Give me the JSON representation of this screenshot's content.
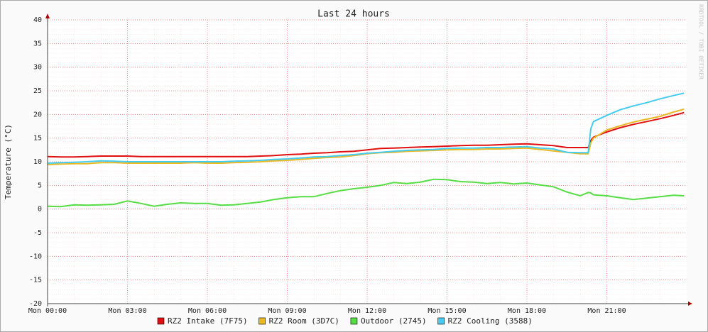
{
  "chart_data": {
    "type": "line",
    "title": "Last 24 hours",
    "y_label": "Temperature (°C)",
    "watermark": "RRDTOOL / TOBI OETIKER",
    "x": [
      0,
      0.5,
      1,
      1.5,
      2,
      2.5,
      3,
      3.5,
      4,
      4.5,
      5,
      5.5,
      6,
      6.5,
      7,
      7.5,
      8,
      8.5,
      9,
      9.5,
      10,
      10.5,
      11,
      11.5,
      12,
      12.5,
      13,
      13.5,
      14,
      14.5,
      15,
      15.5,
      16,
      16.5,
      17,
      17.5,
      18,
      18.5,
      19,
      19.5,
      20,
      20.3,
      20.4,
      20.5,
      21,
      21.5,
      22,
      22.5,
      23,
      23.5,
      23.9
    ],
    "xlim": [
      0,
      24
    ],
    "xticks": [
      {
        "value": 0,
        "label": "Mon 00:00"
      },
      {
        "value": 3,
        "label": "Mon 03:00"
      },
      {
        "value": 6,
        "label": "Mon 06:00"
      },
      {
        "value": 9,
        "label": "Mon 09:00"
      },
      {
        "value": 12,
        "label": "Mon 12:00"
      },
      {
        "value": 15,
        "label": "Mon 15:00"
      },
      {
        "value": 18,
        "label": "Mon 18:00"
      },
      {
        "value": 21,
        "label": "Mon 21:00"
      }
    ],
    "ylim": [
      -20,
      40
    ],
    "yticks": [
      -20,
      -15,
      -10,
      -5,
      0,
      5,
      10,
      15,
      20,
      25,
      30,
      35,
      40
    ],
    "grid": true,
    "series": [
      {
        "name": "RZ2 Intake (7F75)",
        "color": "#e01010",
        "values": [
          11.1,
          11,
          11,
          11.1,
          11.2,
          11.2,
          11.2,
          11.1,
          11.1,
          11.1,
          11.1,
          11.1,
          11.1,
          11.1,
          11.1,
          11.1,
          11.2,
          11.3,
          11.5,
          11.6,
          11.8,
          11.9,
          12.1,
          12.2,
          12.5,
          12.8,
          12.9,
          13,
          13.1,
          13.2,
          13.3,
          13.4,
          13.5,
          13.5,
          13.6,
          13.7,
          13.8,
          13.6,
          13.4,
          13,
          13,
          13,
          14.5,
          15.2,
          16.3,
          17.2,
          17.9,
          18.5,
          19.1,
          19.8,
          20.4
        ]
      },
      {
        "name": "RZ2 Room (3D7C)",
        "color": "#e8b825",
        "values": [
          9.4,
          9.5,
          9.6,
          9.6,
          9.8,
          9.8,
          9.7,
          9.7,
          9.7,
          9.7,
          9.7,
          9.8,
          9.7,
          9.7,
          9.8,
          9.9,
          10,
          10.2,
          10.3,
          10.5,
          10.7,
          10.9,
          11,
          11.3,
          11.7,
          11.9,
          12,
          12.2,
          12.3,
          12.4,
          12.5,
          12.6,
          12.6,
          12.7,
          12.7,
          12.8,
          12.9,
          12.6,
          12.3,
          12,
          11.7,
          11.7,
          14,
          15,
          16.7,
          17.6,
          18.4,
          19,
          19.6,
          20.5,
          21.1
        ]
      },
      {
        "name": "Outdoor (2745)",
        "color": "#55dd44",
        "values": [
          0.6,
          0.5,
          0.9,
          0.8,
          0.9,
          1,
          1.7,
          1.2,
          0.6,
          1,
          1.3,
          1.2,
          1.2,
          0.8,
          0.9,
          1.2,
          1.5,
          2,
          2.4,
          2.6,
          2.6,
          3.3,
          3.9,
          4.3,
          4.6,
          5,
          5.6,
          5.4,
          5.7,
          6.3,
          6.2,
          5.8,
          5.7,
          5.4,
          5.6,
          5.3,
          5.5,
          5.1,
          4.7,
          3.6,
          2.8,
          3.5,
          3.4,
          3,
          2.8,
          2.4,
          2,
          2.3,
          2.6,
          2.9,
          2.8
        ]
      },
      {
        "name": "RZ2 Cooling (3588)",
        "color": "#44ccee",
        "values": [
          9.7,
          9.8,
          9.9,
          10,
          10.2,
          10.1,
          10,
          10,
          10,
          10,
          10,
          10,
          10,
          10,
          10.1,
          10.2,
          10.3,
          10.5,
          10.6,
          10.8,
          11,
          11.1,
          11.3,
          11.5,
          11.8,
          12,
          12.2,
          12.4,
          12.5,
          12.6,
          12.8,
          12.9,
          12.9,
          13,
          13,
          13.1,
          13.2,
          12.9,
          12.7,
          12,
          11.9,
          11.9,
          17,
          18.5,
          19.8,
          21,
          21.8,
          22.5,
          23.3,
          24,
          24.5
        ]
      }
    ]
  }
}
